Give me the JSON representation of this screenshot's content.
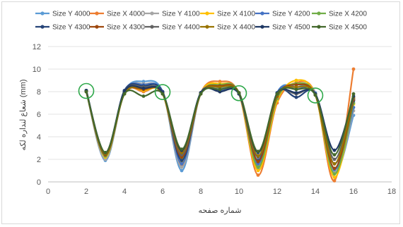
{
  "chart_data": {
    "type": "line",
    "title": "",
    "xlabel": "شماره صفحه",
    "ylabel": "شعاع لنداره لكه (mm)",
    "xlim": [
      0,
      18
    ],
    "ylim": [
      0,
      12
    ],
    "xticks": [
      0,
      2,
      4,
      6,
      8,
      10,
      12,
      14,
      16,
      18
    ],
    "yticks": [
      0,
      2,
      4,
      6,
      8,
      10,
      12
    ],
    "grid": "horizontal",
    "legend_position": "top",
    "x": [
      2,
      3,
      4,
      5,
      6,
      7,
      8,
      9,
      10,
      11,
      12,
      13,
      14,
      15,
      16
    ],
    "series": [
      {
        "name": "Size Y 4000",
        "color": "#5b9bd5",
        "values": [
          8.1,
          1.9,
          8.0,
          8.9,
          8.0,
          1.0,
          7.9,
          8.3,
          7.9,
          1.2,
          7.9,
          8.4,
          7.9,
          0.8,
          5.9
        ]
      },
      {
        "name": "Size X 4000",
        "color": "#ed7d31",
        "values": [
          8.1,
          2.1,
          7.9,
          8.0,
          7.9,
          1.5,
          7.9,
          8.9,
          7.8,
          0.6,
          7.0,
          8.8,
          7.8,
          0.1,
          10.0
        ]
      },
      {
        "name": "Size Y 4100",
        "color": "#a5a5a5",
        "values": [
          8.0,
          2.0,
          8.0,
          8.7,
          7.9,
          1.3,
          7.8,
          8.2,
          7.8,
          1.4,
          7.8,
          8.3,
          7.8,
          0.9,
          6.3
        ]
      },
      {
        "name": "Size X 4100",
        "color": "#ffc000",
        "values": [
          8.1,
          2.2,
          7.9,
          8.1,
          7.8,
          1.8,
          7.9,
          8.7,
          7.8,
          1.0,
          7.2,
          9.0,
          7.7,
          0.4,
          6.9
        ]
      },
      {
        "name": "Size Y 4200",
        "color": "#4472c4",
        "values": [
          8.1,
          2.3,
          8.1,
          8.6,
          8.0,
          1.6,
          7.9,
          8.1,
          7.8,
          1.6,
          7.9,
          8.2,
          7.8,
          1.1,
          6.6
        ]
      },
      {
        "name": "Size X 4200",
        "color": "#70ad47",
        "values": [
          8.0,
          2.3,
          7.8,
          8.2,
          7.8,
          2.0,
          7.8,
          8.6,
          7.9,
          1.3,
          7.4,
          8.7,
          7.7,
          0.7,
          7.0
        ]
      },
      {
        "name": "Size Y 4300",
        "color": "#264478",
        "values": [
          8.1,
          2.4,
          8.1,
          8.5,
          8.0,
          1.9,
          7.9,
          8.0,
          7.8,
          1.9,
          7.9,
          7.5,
          7.8,
          1.6,
          7.2
        ]
      },
      {
        "name": "Size X 4300",
        "color": "#9e480e",
        "values": [
          8.0,
          2.4,
          7.8,
          8.2,
          7.8,
          2.2,
          7.8,
          8.5,
          7.9,
          1.8,
          7.6,
          8.6,
          7.7,
          1.2,
          7.3
        ]
      },
      {
        "name": "Size Y 4400",
        "color": "#636363",
        "values": [
          8.1,
          2.5,
          8.0,
          8.4,
          7.9,
          2.4,
          7.9,
          8.0,
          7.8,
          2.2,
          7.8,
          7.8,
          7.8,
          2.0,
          7.4
        ]
      },
      {
        "name": "Size X 4400",
        "color": "#997300",
        "values": [
          8.0,
          2.5,
          7.8,
          8.3,
          7.8,
          2.6,
          7.8,
          8.4,
          7.9,
          2.3,
          7.7,
          8.4,
          7.7,
          1.6,
          7.5
        ]
      },
      {
        "name": "Size Y 4500",
        "color": "#1f3864",
        "values": [
          8.1,
          2.6,
          8.0,
          8.3,
          7.9,
          2.8,
          7.9,
          8.0,
          7.8,
          2.6,
          7.8,
          7.9,
          7.8,
          2.8,
          7.6
        ]
      },
      {
        "name": "Size X 4500",
        "color": "#43682b",
        "values": [
          8.0,
          2.6,
          7.8,
          7.6,
          7.8,
          2.9,
          7.8,
          8.2,
          7.9,
          2.7,
          7.8,
          8.2,
          7.7,
          2.4,
          7.8
        ]
      }
    ],
    "highlights": [
      {
        "x": 2,
        "y": 8.0
      },
      {
        "x": 6,
        "y": 7.9
      },
      {
        "x": 10,
        "y": 7.8
      },
      {
        "x": 14,
        "y": 7.6
      }
    ]
  }
}
